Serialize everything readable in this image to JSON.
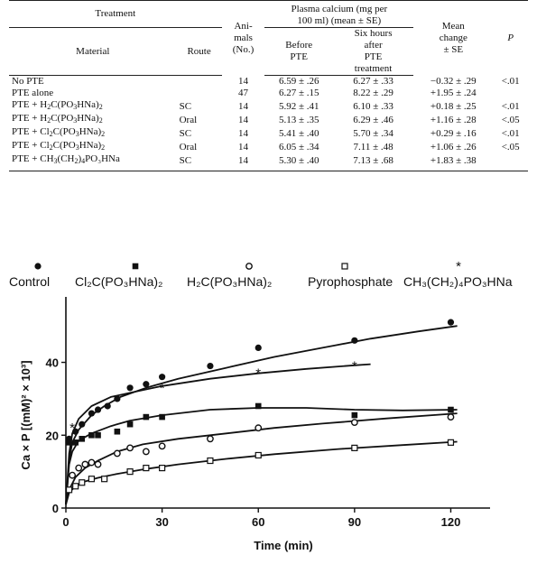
{
  "table": {
    "header": {
      "treatment": "Treatment",
      "material": "Material",
      "route": "Route",
      "animals_line1": "Ani-",
      "animals_line2": "mals",
      "animals_line3": "(No.)",
      "plasma_line1": "Plasma calcium (mg per",
      "plasma_line2": "100 ml) (mean ± SE)",
      "before_line1": "Before",
      "before_line2": "PTE",
      "six_line1": "Six hours",
      "six_line2": "after",
      "six_line3": "PTE",
      "six_line4": "treatment",
      "mean_line1": "Mean",
      "mean_line2": "change",
      "mean_line3": "± SE",
      "p": "P"
    },
    "rows": [
      {
        "material": "No PTE",
        "route": "",
        "animals": "14",
        "before": "6.59 ± .26",
        "after": "6.27 ± .33",
        "change": "−0.32 ± .29",
        "p": "<.01"
      },
      {
        "material": "PTE alone",
        "route": "",
        "animals": "47",
        "before": "6.27 ± .15",
        "after": "8.22 ± .29",
        "change": "+1.95 ± .24",
        "p": ""
      },
      {
        "material_pre": "PTE + H",
        "material_sub1": "2",
        "material_mid": "C(PO",
        "material_sub2": "3",
        "material_post": "HNa)",
        "material_sub3": "2",
        "route": "SC",
        "animals": "14",
        "before": "5.92 ± .41",
        "after": "6.10 ± .33",
        "change": "+0.18 ± .25",
        "p": "<.01"
      },
      {
        "material_pre": "PTE + H",
        "material_sub1": "2",
        "material_mid": "C(PO",
        "material_sub2": "3",
        "material_post": "HNa)",
        "material_sub3": "2",
        "route": "Oral",
        "animals": "14",
        "before": "5.13 ± .35",
        "after": "6.29 ± .46",
        "change": "+1.16 ± .28",
        "p": "<.05"
      },
      {
        "material_pre": "PTE + Cl",
        "material_sub1": "2",
        "material_mid": "C(PO",
        "material_sub2": "3",
        "material_post": "HNa)",
        "material_sub3": "2",
        "route": "SC",
        "animals": "14",
        "before": "5.41 ± .40",
        "after": "5.70 ± .34",
        "change": "+0.29 ± .16",
        "p": "<.01"
      },
      {
        "material_pre": "PTE + Cl",
        "material_sub1": "2",
        "material_mid": "C(PO",
        "material_sub2": "3",
        "material_post": "HNa)",
        "material_sub3": "2",
        "route": "Oral",
        "animals": "14",
        "before": "6.05 ± .34",
        "after": "7.11 ± .48",
        "change": "+1.06 ± .26",
        "p": "<.05"
      },
      {
        "material_pre": "PTE + CH",
        "material_sub1": "3",
        "material_mid": "(CH",
        "material_sub2": "2",
        "material_post": ")",
        "material_sub3": "4",
        "material_tail": "PO₃HNa",
        "route": "SC",
        "animals": "14",
        "before": "5.30 ± .40",
        "after": "7.13 ± .68",
        "change": "+1.83 ± .38",
        "p": ""
      }
    ]
  },
  "chart_data": {
    "type": "scatter",
    "xlabel": "Time (min)",
    "ylabel": "Ca × P [(mM)² × 10³]",
    "xlim": [
      0,
      130
    ],
    "ylim": [
      0,
      55
    ],
    "x_ticks": [
      0,
      30,
      60,
      90,
      120
    ],
    "y_ticks": [
      0,
      20,
      40
    ],
    "legend_position": "top",
    "series": [
      {
        "name": "Control",
        "marker": "filled-circle",
        "points": [
          [
            1,
            19
          ],
          [
            3,
            21
          ],
          [
            5,
            23
          ],
          [
            8,
            26
          ],
          [
            10,
            27
          ],
          [
            13,
            28
          ],
          [
            16,
            30
          ],
          [
            20,
            33
          ],
          [
            25,
            34
          ],
          [
            30,
            36
          ],
          [
            45,
            39
          ],
          [
            60,
            44
          ],
          [
            90,
            46
          ],
          [
            120,
            51
          ]
        ],
        "curve": [
          [
            0,
            1
          ],
          [
            1,
            13
          ],
          [
            2,
            18
          ],
          [
            4,
            21.5
          ],
          [
            8,
            25.5
          ],
          [
            12,
            28
          ],
          [
            17,
            30.5
          ],
          [
            25,
            33
          ],
          [
            35,
            35.5
          ],
          [
            50,
            38.5
          ],
          [
            65,
            41.5
          ],
          [
            80,
            44
          ],
          [
            95,
            46.5
          ],
          [
            110,
            48.5
          ],
          [
            122,
            50
          ]
        ]
      },
      {
        "name": "Cl₂C(PO₃HNa)₂",
        "marker": "filled-square",
        "points": [
          [
            1,
            18
          ],
          [
            3,
            18
          ],
          [
            5,
            19
          ],
          [
            8,
            20
          ],
          [
            10,
            20
          ],
          [
            16,
            21
          ],
          [
            20,
            23
          ],
          [
            25,
            25
          ],
          [
            30,
            25
          ],
          [
            60,
            28
          ],
          [
            90,
            25.5
          ],
          [
            120,
            27
          ]
        ],
        "curve": [
          [
            0,
            1
          ],
          [
            1,
            12
          ],
          [
            2,
            15.5
          ],
          [
            4,
            18.5
          ],
          [
            8,
            20.5
          ],
          [
            14,
            22.5
          ],
          [
            20,
            24
          ],
          [
            30,
            25.5
          ],
          [
            45,
            27
          ],
          [
            60,
            27.5
          ],
          [
            75,
            27.5
          ],
          [
            90,
            27
          ],
          [
            105,
            26.8
          ],
          [
            122,
            27
          ]
        ]
      },
      {
        "name": "H₂C(PO₃HNa)₂",
        "marker": "open-circle",
        "points": [
          [
            2,
            9
          ],
          [
            4,
            11
          ],
          [
            6,
            12
          ],
          [
            8,
            12.5
          ],
          [
            10,
            12
          ],
          [
            16,
            15
          ],
          [
            20,
            16.5
          ],
          [
            25,
            15.5
          ],
          [
            30,
            17
          ],
          [
            45,
            19
          ],
          [
            60,
            22
          ],
          [
            90,
            23.5
          ],
          [
            120,
            25
          ]
        ],
        "curve": [
          [
            0,
            1
          ],
          [
            1,
            5
          ],
          [
            3,
            8.5
          ],
          [
            6,
            11
          ],
          [
            10,
            13
          ],
          [
            16,
            15.5
          ],
          [
            24,
            17.5
          ],
          [
            35,
            19
          ],
          [
            50,
            20.5
          ],
          [
            65,
            22
          ],
          [
            80,
            23.2
          ],
          [
            100,
            24.6
          ],
          [
            122,
            26
          ]
        ]
      },
      {
        "name": "Pyrophosphate",
        "marker": "open-square",
        "points": [
          [
            1,
            5
          ],
          [
            3,
            6
          ],
          [
            5,
            7
          ],
          [
            8,
            8
          ],
          [
            12,
            8
          ],
          [
            20,
            10
          ],
          [
            25,
            11
          ],
          [
            30,
            11
          ],
          [
            45,
            13
          ],
          [
            60,
            14.5
          ],
          [
            90,
            16.5
          ],
          [
            120,
            18
          ]
        ],
        "curve": [
          [
            0,
            1
          ],
          [
            1,
            4.2
          ],
          [
            3,
            6
          ],
          [
            6,
            7.3
          ],
          [
            10,
            8.3
          ],
          [
            16,
            9.4
          ],
          [
            24,
            10.6
          ],
          [
            35,
            12
          ],
          [
            50,
            13.5
          ],
          [
            65,
            14.8
          ],
          [
            85,
            16.2
          ],
          [
            105,
            17.3
          ],
          [
            122,
            18.2
          ]
        ]
      },
      {
        "name": "CH₃(CH₂)₄PO₃HNa",
        "marker": "asterisk",
        "points": [
          [
            2,
            22
          ],
          [
            30,
            33
          ],
          [
            60,
            37
          ],
          [
            90,
            39
          ]
        ],
        "curve": [
          [
            0,
            1
          ],
          [
            1,
            15
          ],
          [
            2,
            20.5
          ],
          [
            4,
            24.5
          ],
          [
            8,
            28
          ],
          [
            14,
            30.5
          ],
          [
            22,
            32
          ],
          [
            30,
            33.5
          ],
          [
            45,
            35.5
          ],
          [
            60,
            37
          ],
          [
            75,
            38.2
          ],
          [
            90,
            39.2
          ],
          [
            95,
            39.5
          ]
        ]
      }
    ]
  }
}
